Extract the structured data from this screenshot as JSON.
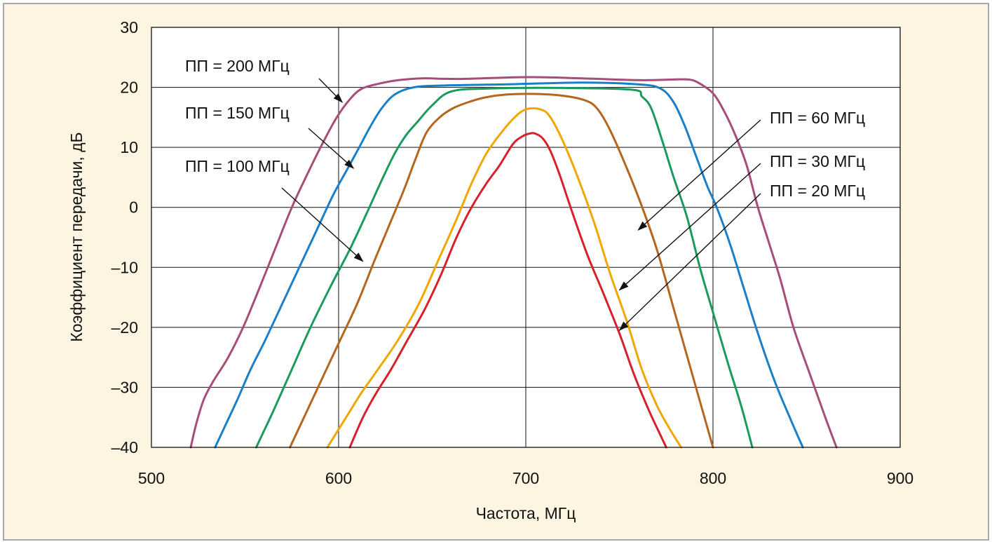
{
  "chart_data": {
    "type": "line",
    "xlabel": "Частота, МГц",
    "ylabel": "Коэффициент передачи, дБ",
    "xlim": [
      500,
      900
    ],
    "ylim": [
      -40,
      30
    ],
    "xticks": [
      500,
      600,
      700,
      800,
      900
    ],
    "yticks": [
      30,
      20,
      10,
      0,
      -10,
      -20,
      -30,
      -40
    ],
    "xtick_labels": [
      "500",
      "600",
      "700",
      "800",
      "900"
    ],
    "ytick_labels": [
      "30",
      "20",
      "10",
      "0",
      "–10",
      "–20",
      "–30",
      "–40"
    ],
    "grid": true,
    "series": [
      {
        "name": "ПП = 200 МГц",
        "color": "#a64d79",
        "x": [
          521,
          524,
          528,
          533,
          541,
          549,
          557,
          566,
          575,
          584,
          592,
          599,
          606,
          612,
          620,
          632,
          645,
          665,
          700,
          730,
          760,
          779,
          787,
          792,
          800,
          806,
          812,
          818,
          824,
          830,
          836,
          843,
          852,
          860,
          866
        ],
        "y": [
          -40,
          -36,
          -32,
          -29,
          -25,
          -20,
          -14,
          -7,
          0,
          6,
          11,
          15,
          18,
          19.7,
          20.5,
          21.2,
          21.5,
          21.4,
          21.7,
          21.5,
          21.2,
          21.3,
          21.3,
          20.8,
          19,
          16,
          12,
          7,
          0,
          -6,
          -12,
          -20,
          -28,
          -35,
          -40
        ]
      },
      {
        "name": "ПП = 150 МГц",
        "color": "#1a7fc9",
        "x": [
          534,
          540,
          546,
          553,
          561,
          570,
          579,
          588,
          597,
          604,
          611,
          617,
          623,
          630,
          640,
          655,
          690,
          730,
          760,
          772,
          779,
          785,
          791,
          797,
          802,
          809,
          816,
          824,
          833,
          841,
          848
        ],
        "y": [
          -40,
          -36,
          -32,
          -27,
          -22,
          -16,
          -10,
          -4,
          2,
          6,
          10,
          13.5,
          16.5,
          18.8,
          20,
          20.3,
          20.5,
          20.8,
          20.5,
          19.8,
          17.5,
          13.5,
          8.5,
          3.5,
          0,
          -6,
          -13,
          -21,
          -29,
          -35,
          -40
        ]
      },
      {
        "name": "ПП = 100 МГц",
        "color": "#1a9a5c",
        "x": [
          556,
          565,
          575,
          585,
          596,
          606,
          615,
          623,
          630,
          636,
          642,
          650,
          660,
          680,
          720,
          757,
          762,
          767,
          773,
          779,
          786,
          793,
          800,
          808,
          815,
          821
        ],
        "y": [
          -40,
          -34,
          -27,
          -20,
          -13,
          -7,
          -1,
          4.5,
          9,
          12,
          14.2,
          17,
          19.3,
          19.8,
          19.9,
          19.6,
          18.5,
          16.5,
          11,
          5,
          -1.5,
          -10,
          -17.5,
          -26,
          -33,
          -40
        ]
      },
      {
        "name": "ПП = 60 МГц",
        "color": "#b5651d",
        "x": [
          574,
          583,
          592,
          601,
          610,
          619,
          627,
          635,
          641,
          647,
          654,
          661,
          669,
          678,
          690,
          705,
          720,
          732,
          738,
          744,
          752,
          761,
          770,
          780,
          790,
          800
        ],
        "y": [
          -40,
          -34,
          -28,
          -22,
          -16,
          -9,
          -3,
          3,
          8,
          12.5,
          15,
          16.5,
          17.5,
          18.3,
          18.8,
          18.9,
          18.6,
          17.8,
          16.5,
          13.5,
          8,
          1,
          -7,
          -18,
          -29,
          -40
        ]
      },
      {
        "name": "ПП = 30 МГц",
        "color": "#f0a800",
        "x": [
          594,
          600,
          606,
          612,
          621,
          632,
          643,
          653,
          663,
          671,
          679,
          687,
          694,
          699,
          704,
          709,
          712,
          716,
          722,
          729,
          737,
          745,
          754,
          762,
          770,
          777,
          783
        ],
        "y": [
          -40,
          -37,
          -34,
          -31,
          -27,
          -22,
          -16,
          -9,
          -2,
          4,
          9,
          12.5,
          15,
          16.2,
          16.5,
          16.2,
          15.5,
          13.5,
          9.5,
          4,
          -3,
          -11,
          -19,
          -27,
          -33,
          -37,
          -40
        ]
      },
      {
        "name": "ПП = 20 МГц",
        "color": "#d8202a",
        "x": [
          606,
          613,
          620,
          628,
          637,
          646,
          655,
          663,
          671,
          679,
          686,
          693,
          698,
          702,
          705,
          709,
          713,
          718,
          725,
          733,
          741,
          750,
          758,
          766,
          772,
          775
        ],
        "y": [
          -40,
          -35,
          -31,
          -27,
          -22,
          -17,
          -11,
          -5,
          0,
          4,
          7,
          10.5,
          11.8,
          12.3,
          12.3,
          11.5,
          9.5,
          5.5,
          -1,
          -8,
          -14,
          -21,
          -28,
          -34,
          -38,
          -40
        ]
      }
    ],
    "annotations": [
      {
        "text": "ПП = 200 МГц",
        "series": "ПП = 200 МГц",
        "point_to": [
          602,
          17.5
        ]
      },
      {
        "text": "ПП = 150 МГц",
        "series": "ПП = 150 МГц",
        "point_to": [
          608,
          6.5
        ]
      },
      {
        "text": "ПП = 100 МГц",
        "series": "ПП = 100 МГц",
        "point_to": [
          613,
          -9
        ]
      },
      {
        "text": "ПП = 60 МГц",
        "series": "ПП = 60 МГц",
        "point_to": [
          760,
          -3.8
        ]
      },
      {
        "text": "ПП = 30 МГц",
        "series": "ПП = 30 МГц",
        "point_to": [
          750,
          -13.8
        ]
      },
      {
        "text": "ПП = 20 МГц",
        "series": "ПП = 20 МГц",
        "point_to": [
          750,
          -20.5
        ]
      }
    ]
  }
}
